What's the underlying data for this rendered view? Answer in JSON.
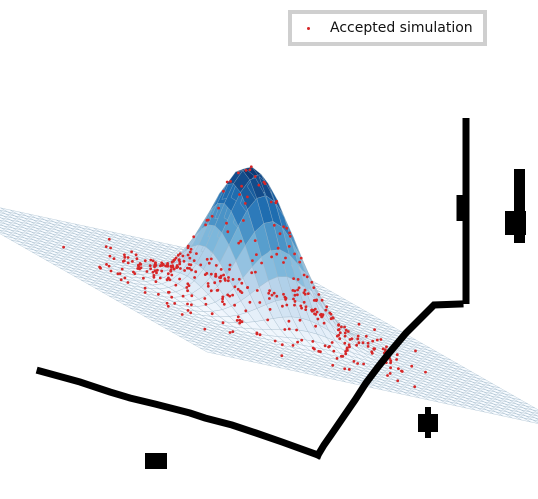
{
  "chart_data": {
    "type": "surface3d-scatter",
    "surface": {
      "function": "gaussian",
      "center_x": 0,
      "center_y": 0,
      "peak": 1,
      "sigma": 0.18,
      "x_range": [
        -1,
        1
      ],
      "y_range": [
        -1,
        1
      ],
      "grid": 40,
      "cmap": "Blues"
    },
    "scatter_series": [
      {
        "name": "Accepted simulation",
        "color": "#d62728",
        "count": 420,
        "distribution": "ring",
        "ring_radius": 0.46,
        "ring_spread": 0.16,
        "peak_points": 8
      }
    ],
    "legend_position": "top-right",
    "axes": "3d",
    "xlabel": "",
    "ylabel": "",
    "zlabel": "",
    "grid": false
  },
  "legend": {
    "items": [
      {
        "label": "Accepted simulation",
        "color": "#d62728"
      }
    ]
  }
}
